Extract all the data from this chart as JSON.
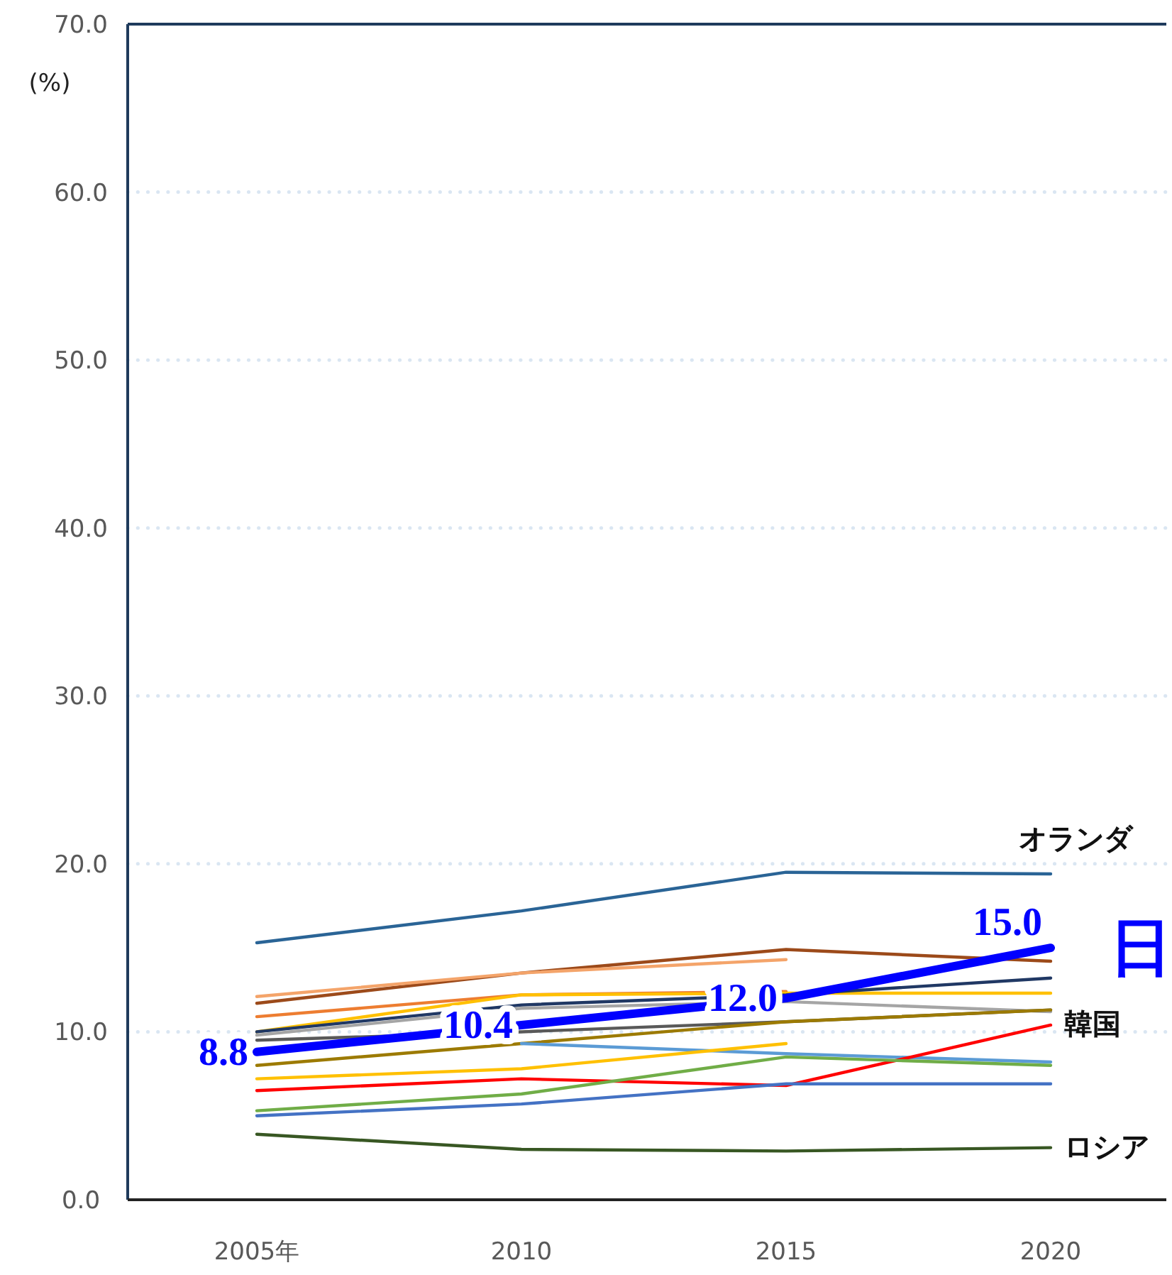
{
  "chart_data": {
    "type": "line",
    "ylabel": "(%)",
    "categories": [
      "2005年",
      "2010",
      "2015",
      "2020"
    ],
    "ylim": [
      0,
      70
    ],
    "yticks": [
      {
        "value": 0,
        "label": "0.0"
      },
      {
        "value": 10,
        "label": "10.0"
      },
      {
        "value": 20,
        "label": "20.0"
      },
      {
        "value": 30,
        "label": "30.0"
      },
      {
        "value": 40,
        "label": "40.0"
      },
      {
        "value": 50,
        "label": "50.0"
      },
      {
        "value": 60,
        "label": "60.0"
      },
      {
        "value": 70,
        "label": "70.0"
      }
    ],
    "grid": "y",
    "marker": "none",
    "line_style": "solid",
    "series": [
      {
        "name": "オランダ",
        "color": "#2a6496",
        "values": [
          15.3,
          17.2,
          19.5,
          19.4
        ]
      },
      {
        "color": "#9c4a1a",
        "values": [
          11.7,
          13.5,
          14.9,
          14.2
        ]
      },
      {
        "color": "#f4a46a",
        "values": [
          12.1,
          13.5,
          14.3,
          null
        ]
      },
      {
        "color": "#ed7d31",
        "values": [
          10.9,
          12.2,
          12.4,
          null
        ]
      },
      {
        "color": "#ffc000",
        "values": [
          10.0,
          12.2,
          12.3,
          12.3
        ]
      },
      {
        "color": "#203864",
        "values": [
          10.0,
          11.6,
          12.2,
          13.2
        ]
      },
      {
        "color": "#a5a5a5",
        "values": [
          9.8,
          11.4,
          11.8,
          11.2
        ]
      },
      {
        "color": "#595959",
        "values": [
          9.5,
          10.0,
          10.6,
          11.3
        ]
      },
      {
        "color": "#9c7a00",
        "values": [
          8.0,
          9.3,
          10.6,
          11.3
        ]
      },
      {
        "color": "#5b9bd5",
        "values": [
          null,
          9.3,
          8.7,
          8.2
        ]
      },
      {
        "color": "#ffc000",
        "values": [
          7.2,
          7.8,
          9.3,
          null
        ]
      },
      {
        "name": "韓国",
        "color": "#ff0000",
        "values": [
          6.5,
          7.2,
          6.8,
          10.4
        ]
      },
      {
        "color": "#70ad47",
        "values": [
          5.3,
          6.3,
          8.5,
          8.0
        ]
      },
      {
        "color": "#4472c4",
        "values": [
          5.0,
          5.7,
          6.9,
          6.9
        ]
      },
      {
        "name": "ロシア",
        "color": "#385723",
        "values": [
          3.9,
          3.0,
          2.9,
          3.1
        ]
      },
      {
        "name": "日",
        "color": "#0000ff",
        "values": [
          8.8,
          10.4,
          12.0,
          15.0
        ],
        "value_labels": [
          "8.8",
          "10.4",
          "12.0",
          "15.0"
        ]
      }
    ]
  }
}
